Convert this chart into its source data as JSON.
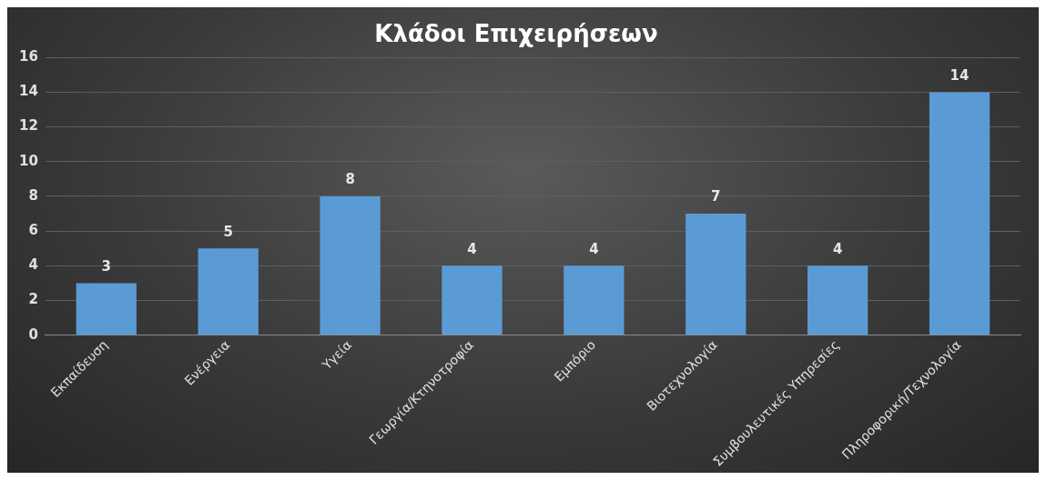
{
  "chart_data": {
    "type": "bar",
    "title": "Κλάδοι Επιχειρήσεων",
    "categories": [
      "Εκπαίδευση",
      "Ενέργεια",
      "Υγεία",
      "Γεωργία/Κτηνοτροφία",
      "Εμπόριο",
      "Βιοτεχνολογία",
      "Συμβουλευτικές Υπηρεσίες",
      "Πληροφορική/Τεχνολογία"
    ],
    "values": [
      3,
      5,
      8,
      4,
      4,
      7,
      4,
      14
    ],
    "color": "#5b9bd5",
    "ylim": [
      0,
      16
    ],
    "yticks": [
      0,
      2,
      4,
      6,
      8,
      10,
      12,
      14,
      16
    ],
    "grid": "y",
    "legend": false,
    "data_labels": true
  }
}
